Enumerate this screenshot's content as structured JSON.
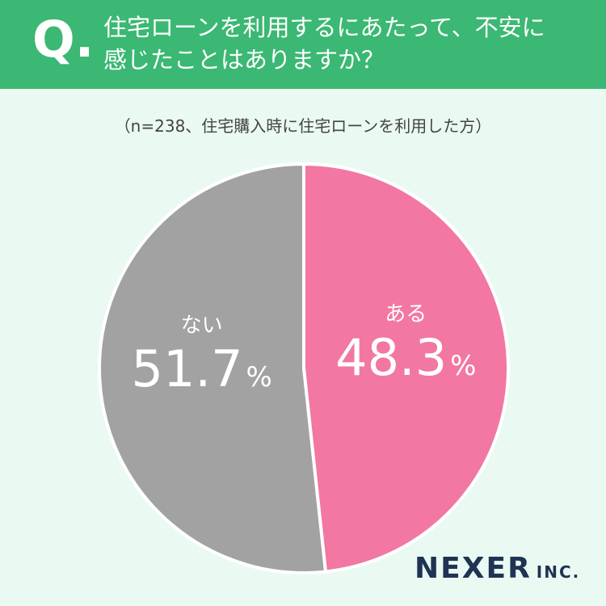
{
  "header": {
    "q_mark": "Q.",
    "question_line1": "住宅ローンを利用するにあたって、不安に",
    "question_line2": "感じたことはありますか？"
  },
  "subtitle": "（n=238、住宅購入時に住宅ローンを利用した方）",
  "colors": {
    "header_bg": "#3bb873",
    "page_bg": "#eafaf2",
    "yes": "#f277a2",
    "no": "#a2a2a2"
  },
  "chart_data": {
    "type": "pie",
    "title": "",
    "unit": "%",
    "slices": [
      {
        "label": "ある",
        "value": 48.3,
        "color": "#f277a2"
      },
      {
        "label": "ない",
        "value": 51.7,
        "color": "#a2a2a2"
      }
    ]
  },
  "logo": {
    "main": "NEXER",
    "suffix": "INC."
  }
}
